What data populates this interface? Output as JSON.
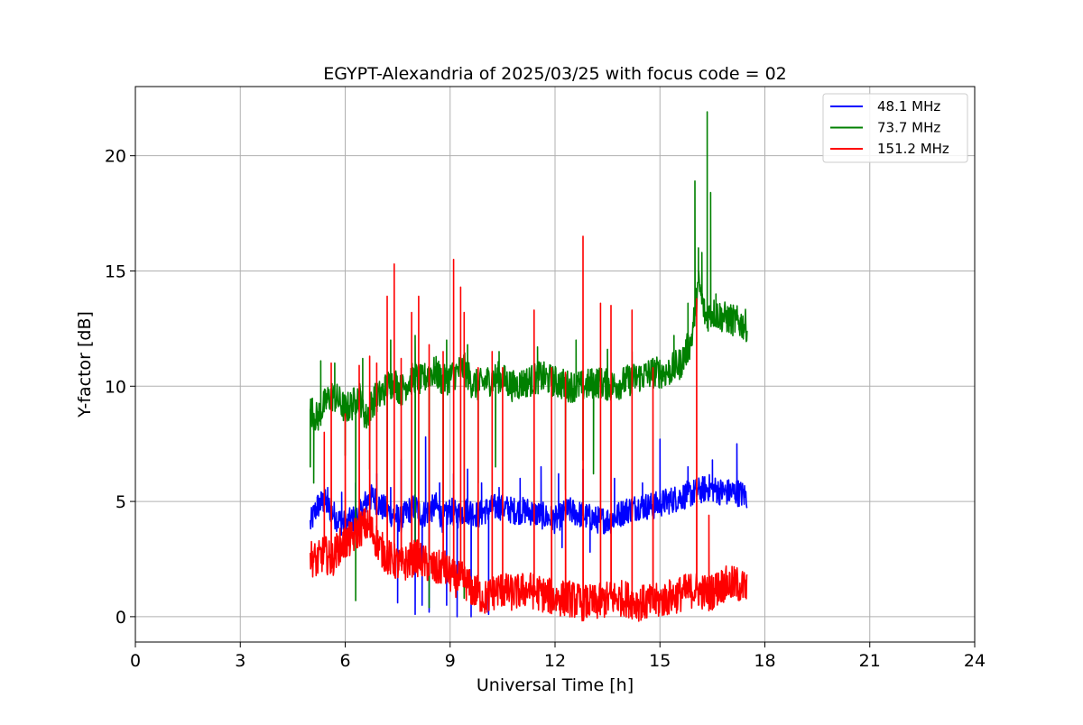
{
  "chart_data": {
    "type": "line",
    "title": "EGYPT-Alexandria of 2025/03/25 with focus code = 02",
    "xlabel": "Universal Time [h]",
    "ylabel": "Y-factor [dB]",
    "xlim": [
      0,
      24
    ],
    "ylim": [
      -1.1,
      23.0
    ],
    "xticks": [
      0,
      3,
      6,
      9,
      12,
      15,
      18,
      21,
      24
    ],
    "yticks": [
      0,
      5,
      10,
      15,
      20
    ],
    "grid": true,
    "legend_position": "top-right",
    "series": [
      {
        "name": "48.1 MHz",
        "color": "#0000ff",
        "x": [
          5.0,
          5.2,
          5.4,
          5.6,
          5.8,
          6.0,
          6.2,
          6.4,
          6.6,
          6.8,
          7.0,
          7.2,
          7.4,
          7.6,
          7.8,
          8.0,
          8.2,
          8.4,
          8.6,
          8.8,
          9.0,
          9.2,
          9.4,
          9.6,
          9.8,
          10.0,
          10.4,
          10.8,
          11.2,
          11.6,
          12.0,
          12.4,
          12.8,
          13.2,
          13.6,
          14.0,
          14.4,
          14.8,
          15.2,
          15.6,
          16.0,
          16.4,
          16.8,
          17.2,
          17.5
        ],
        "y": [
          4.0,
          4.8,
          5.0,
          4.6,
          4.2,
          4.0,
          4.2,
          4.4,
          5.0,
          5.2,
          4.8,
          4.6,
          4.4,
          4.2,
          4.6,
          4.8,
          4.4,
          4.6,
          4.8,
          4.2,
          4.6,
          4.4,
          4.6,
          4.6,
          4.4,
          4.6,
          4.8,
          4.6,
          4.6,
          4.4,
          4.2,
          4.6,
          4.4,
          4.2,
          4.2,
          4.6,
          4.8,
          4.8,
          5.0,
          5.2,
          5.4,
          5.6,
          5.4,
          5.4,
          5.2
        ],
        "spikes": [
          [
            5.2,
            5.2
          ],
          [
            5.5,
            5.6
          ],
          [
            5.9,
            5.4
          ],
          [
            6.3,
            5.8
          ],
          [
            6.9,
            6.2
          ],
          [
            7.3,
            5.6
          ],
          [
            7.6,
            6.8
          ],
          [
            7.9,
            5.2
          ],
          [
            8.3,
            7.8
          ],
          [
            8.7,
            5.8
          ],
          [
            9.1,
            6.2
          ],
          [
            9.5,
            6.4
          ],
          [
            9.9,
            5.8
          ],
          [
            10.4,
            5.6
          ],
          [
            11.0,
            6.0
          ],
          [
            11.6,
            6.5
          ],
          [
            12.1,
            6.2
          ],
          [
            12.8,
            6.4
          ],
          [
            13.7,
            6.0
          ],
          [
            14.5,
            5.8
          ],
          [
            15.0,
            7.7
          ],
          [
            15.8,
            6.5
          ],
          [
            16.5,
            6.8
          ],
          [
            17.2,
            7.5
          ],
          [
            7.5,
            0.6
          ],
          [
            8.0,
            0.1
          ],
          [
            8.2,
            0.5
          ],
          [
            8.4,
            0.2
          ],
          [
            8.9,
            0.5
          ],
          [
            9.2,
            0.0
          ],
          [
            9.6,
            0.0
          ],
          [
            10.1,
            0.1
          ],
          [
            12.2,
            3.0
          ],
          [
            13.0,
            2.8
          ]
        ]
      },
      {
        "name": "73.7 MHz",
        "color": "#008000",
        "x": [
          5.0,
          5.2,
          5.4,
          5.6,
          5.8,
          6.0,
          6.2,
          6.4,
          6.6,
          6.8,
          7.0,
          7.2,
          7.4,
          7.6,
          7.8,
          8.0,
          8.2,
          8.4,
          8.6,
          8.8,
          9.0,
          9.2,
          9.4,
          9.6,
          9.8,
          10.0,
          10.4,
          10.8,
          11.2,
          11.6,
          12.0,
          12.4,
          12.8,
          13.2,
          13.6,
          14.0,
          14.4,
          14.8,
          15.2,
          15.6,
          15.9,
          16.1,
          16.3,
          16.5,
          16.8,
          17.2,
          17.5
        ],
        "y": [
          9.0,
          8.6,
          9.2,
          9.6,
          9.4,
          9.0,
          9.2,
          9.6,
          8.6,
          9.4,
          9.6,
          10.0,
          10.2,
          9.8,
          10.2,
          10.4,
          10.2,
          10.6,
          10.6,
          10.2,
          10.4,
          10.6,
          10.8,
          10.2,
          10.0,
          10.2,
          10.4,
          10.0,
          10.2,
          10.4,
          10.2,
          10.0,
          10.0,
          10.2,
          10.0,
          10.2,
          10.4,
          10.6,
          10.6,
          11.0,
          12.0,
          14.5,
          13.0,
          13.2,
          13.0,
          12.8,
          12.6
        ],
        "spikes": [
          [
            5.3,
            11.1
          ],
          [
            5.7,
            11.0
          ],
          [
            6.5,
            11.2
          ],
          [
            7.3,
            12.0
          ],
          [
            8.0,
            12.2
          ],
          [
            8.9,
            12.0
          ],
          [
            9.5,
            11.8
          ],
          [
            10.4,
            11.5
          ],
          [
            11.5,
            11.7
          ],
          [
            12.6,
            12.0
          ],
          [
            13.5,
            11.6
          ],
          [
            14.2,
            11.5
          ],
          [
            14.8,
            11.2
          ],
          [
            15.4,
            12.2
          ],
          [
            15.8,
            13.6
          ],
          [
            16.0,
            18.9
          ],
          [
            16.1,
            16.0
          ],
          [
            16.2,
            15.8
          ],
          [
            16.35,
            21.9
          ],
          [
            16.45,
            18.4
          ],
          [
            16.6,
            14.0
          ],
          [
            17.5,
            14.1
          ],
          [
            5.0,
            6.5
          ],
          [
            5.1,
            5.8
          ],
          [
            6.0,
            7.0
          ],
          [
            6.3,
            0.7
          ],
          [
            6.7,
            6.4
          ],
          [
            7.2,
            5.0
          ],
          [
            8.0,
            3.0
          ],
          [
            8.4,
            0.4
          ],
          [
            8.8,
            4.5
          ],
          [
            9.4,
            0.8
          ],
          [
            9.8,
            5.8
          ],
          [
            10.3,
            6.5
          ],
          [
            12.3,
            5.5
          ],
          [
            12.8,
            6.8
          ],
          [
            13.1,
            6.2
          ]
        ]
      },
      {
        "name": "151.2 MHz",
        "color": "#ff0000",
        "x": [
          5.0,
          5.2,
          5.4,
          5.6,
          5.8,
          6.0,
          6.2,
          6.4,
          6.6,
          6.8,
          7.0,
          7.2,
          7.4,
          7.6,
          7.8,
          8.0,
          8.2,
          8.4,
          8.6,
          8.8,
          9.0,
          9.2,
          9.4,
          9.6,
          9.8,
          10.0,
          10.4,
          10.8,
          11.2,
          11.6,
          12.0,
          12.4,
          12.8,
          13.2,
          13.6,
          14.0,
          14.4,
          14.8,
          15.2,
          15.6,
          16.0,
          16.4,
          16.8,
          17.2,
          17.5
        ],
        "y": [
          2.6,
          2.4,
          2.8,
          2.4,
          3.0,
          3.2,
          3.4,
          3.8,
          4.0,
          3.6,
          3.0,
          2.6,
          2.4,
          2.2,
          2.4,
          2.6,
          2.4,
          2.2,
          2.0,
          2.2,
          1.8,
          1.6,
          1.6,
          1.2,
          1.0,
          0.8,
          1.2,
          1.0,
          1.2,
          1.0,
          0.8,
          0.8,
          0.6,
          0.6,
          0.8,
          0.8,
          0.6,
          0.6,
          0.8,
          1.0,
          1.2,
          1.0,
          1.4,
          1.4,
          1.2
        ],
        "spikes": [
          [
            5.4,
            8.0
          ],
          [
            5.6,
            11.0
          ],
          [
            6.0,
            8.8
          ],
          [
            6.4,
            10.9
          ],
          [
            6.7,
            11.3
          ],
          [
            6.9,
            11.0
          ],
          [
            7.2,
            13.9
          ],
          [
            7.4,
            15.3
          ],
          [
            7.6,
            11.2
          ],
          [
            7.9,
            13.2
          ],
          [
            8.1,
            13.9
          ],
          [
            8.4,
            11.8
          ],
          [
            8.8,
            11.5
          ],
          [
            9.1,
            15.5
          ],
          [
            9.3,
            14.3
          ],
          [
            9.4,
            13.2
          ],
          [
            9.8,
            10.8
          ],
          [
            10.2,
            11.5
          ],
          [
            10.5,
            10.8
          ],
          [
            11.4,
            13.3
          ],
          [
            11.9,
            10.8
          ],
          [
            12.3,
            10.6
          ],
          [
            12.8,
            16.5
          ],
          [
            13.3,
            13.6
          ],
          [
            13.6,
            13.5
          ],
          [
            14.2,
            13.3
          ],
          [
            14.8,
            10.8
          ],
          [
            16.05,
            13.8
          ],
          [
            16.4,
            4.4
          ]
        ]
      }
    ]
  }
}
